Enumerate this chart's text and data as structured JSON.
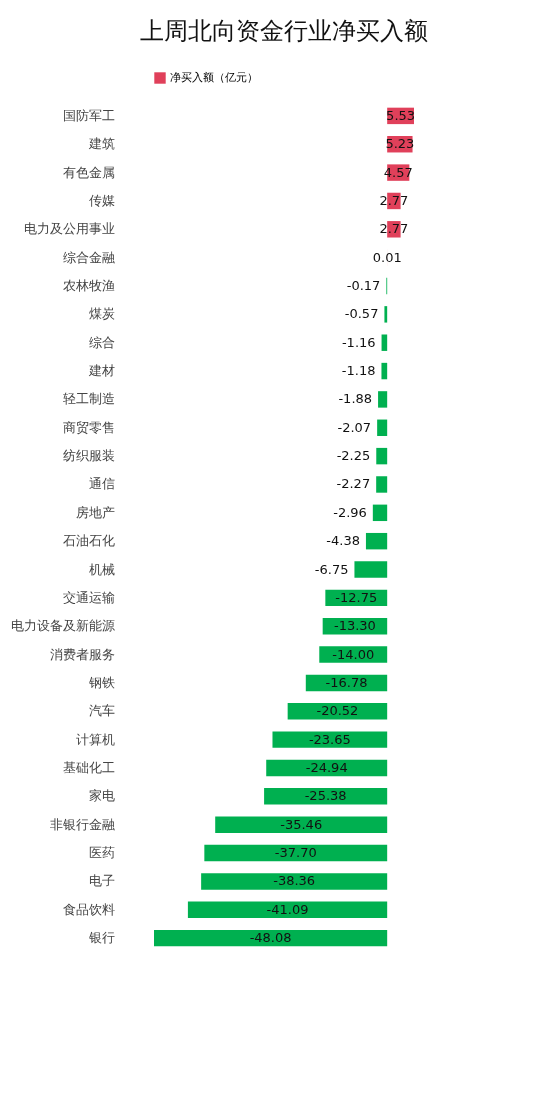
{
  "chart_data": {
    "type": "bar",
    "orientation": "horizontal",
    "title": "上周北向资金行业净买入额",
    "categories": [
      "国防军工",
      "建筑",
      "有色金属",
      "传媒",
      "电力及公用事业",
      "综合金融",
      "农林牧渔",
      "煤炭",
      "综合",
      "建材",
      "轻工制造",
      "商贸零售",
      "纺织服装",
      "通信",
      "房地产",
      "石油石化",
      "机械",
      "交通运输",
      "电力设备及新能源",
      "消费者服务",
      "钢铁",
      "汽车",
      "计算机",
      "基础化工",
      "家电",
      "非银行金融",
      "医药",
      "电子",
      "食品饮料",
      "银行"
    ],
    "series": [
      {
        "name": "净买入额（亿元）",
        "color": "#e0405a",
        "values": [
          5.53,
          5.23,
          4.57,
          2.77,
          2.77,
          0.01,
          null,
          null,
          null,
          null,
          null,
          null,
          null,
          null,
          null,
          null,
          null,
          null,
          null,
          null,
          null,
          null,
          null,
          null,
          null,
          null,
          null,
          null,
          null,
          null
        ],
        "value_labels": [
          "5.53",
          "5.23",
          "4.57",
          "2.77",
          "2.77",
          "0.01",
          null,
          null,
          null,
          null,
          null,
          null,
          null,
          null,
          null,
          null,
          null,
          null,
          null,
          null,
          null,
          null,
          null,
          null,
          null,
          null,
          null,
          null,
          null,
          null
        ]
      },
      {
        "color": "#00b050",
        "values": [
          null,
          null,
          null,
          null,
          null,
          null,
          -0.17,
          -0.57,
          -1.16,
          -1.18,
          -1.88,
          -2.07,
          -2.25,
          -2.27,
          -2.96,
          -4.38,
          -6.75,
          -12.75,
          -13.3,
          -14.0,
          -16.78,
          -20.52,
          -23.65,
          -24.94,
          -25.38,
          -35.46,
          -37.7,
          -38.36,
          -41.09,
          -48.08
        ],
        "value_labels": [
          null,
          null,
          null,
          null,
          null,
          null,
          "-0.17",
          "-0.57",
          "-1.16",
          "-1.18",
          "-1.88",
          "-2.07",
          "-2.25",
          "-2.27",
          "-2.96",
          "-4.38",
          "-6.75",
          "-12.75",
          "-13.30",
          "-14.00",
          "-16.78",
          "-20.52",
          "-23.65",
          "-24.94",
          "-25.38",
          "-35.46",
          "-37.70",
          "-38.36",
          "-41.09",
          "-48.08"
        ]
      }
    ],
    "legend": "top",
    "tick_labels": "y"
  }
}
